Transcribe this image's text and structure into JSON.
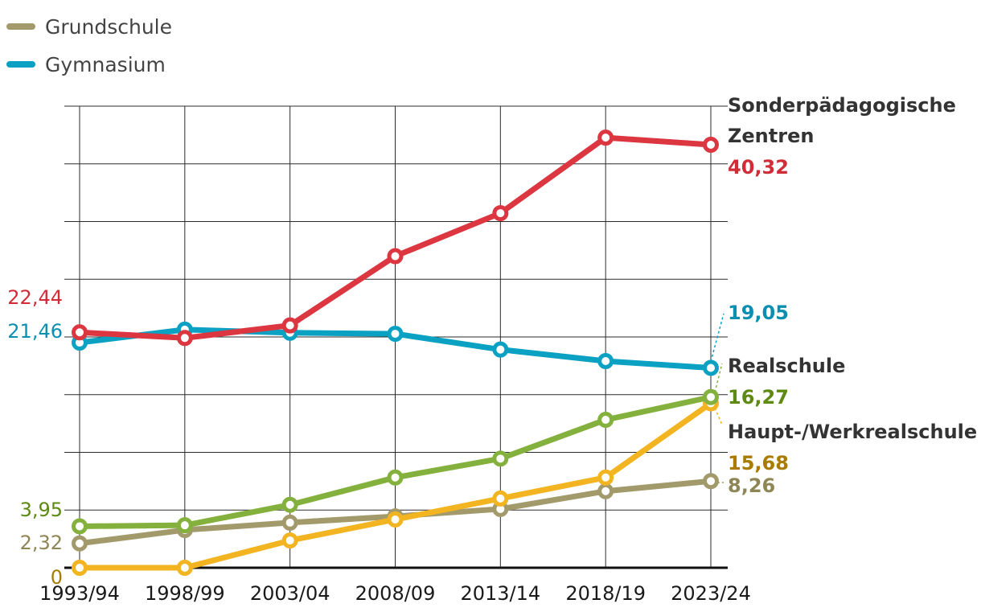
{
  "chart_data": {
    "type": "line",
    "title": "",
    "xlabel": "",
    "ylabel": "",
    "ylim": [
      0,
      44
    ],
    "grid": true,
    "categories": [
      "1993/94",
      "1998/99",
      "2003/04",
      "2008/09",
      "2013/14",
      "2018/19",
      "2023/24"
    ],
    "legend": {
      "placement": "top-left",
      "entries": [
        {
          "name": "Grundschule",
          "color": "#a39a6b"
        },
        {
          "name": "Gymnasium",
          "color": "#0aa1c3"
        }
      ]
    },
    "series": [
      {
        "name": "Sonderpädagogische Zentren",
        "label_lines": [
          "Sonderpädagogische",
          "Zentren"
        ],
        "color": "#dc3641",
        "value_color": "#d12d38",
        "values": [
          22.44,
          21.9,
          23.1,
          29.7,
          33.8,
          41.0,
          40.32
        ],
        "start_label": "22,44",
        "end_label": "40,32"
      },
      {
        "name": "Gymnasium",
        "label_lines": [],
        "color": "#0aa1c3",
        "value_color": "#0b8fb0",
        "values": [
          21.46,
          22.7,
          22.4,
          22.3,
          20.8,
          19.7,
          19.05
        ],
        "start_label": "21,46",
        "end_label": "19,05"
      },
      {
        "name": "Realschule",
        "label_lines": [
          "Realschule"
        ],
        "color": "#84b13d",
        "value_color": "#5e8a13",
        "values": [
          3.95,
          4.05,
          6.0,
          8.6,
          10.4,
          14.1,
          16.27
        ],
        "start_label": "3,95",
        "end_label": "16,27"
      },
      {
        "name": "Haupt-/Werkrealschule",
        "label_lines": [
          "Haupt-/Werkrealschule"
        ],
        "color": "#f2b521",
        "value_color": "#a97b00",
        "values": [
          0,
          0,
          2.6,
          4.6,
          6.6,
          8.6,
          15.68
        ],
        "start_label": "0",
        "end_label": "15,68"
      },
      {
        "name": "Grundschule",
        "label_lines": [],
        "color": "#a39a6b",
        "value_color": "#8f8655",
        "values": [
          2.32,
          3.6,
          4.3,
          4.9,
          5.6,
          7.3,
          8.26
        ],
        "start_label": "2,32",
        "end_label": "8,26"
      }
    ]
  }
}
